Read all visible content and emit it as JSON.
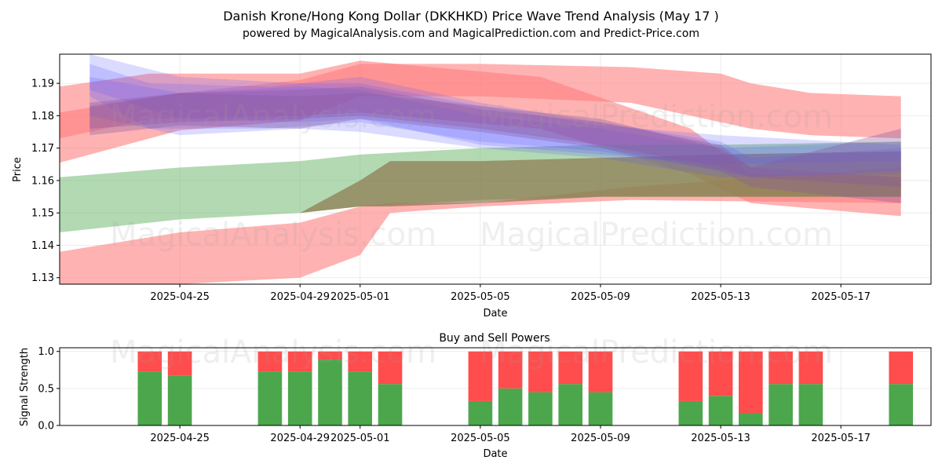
{
  "title": "Danish Krone/Hong Kong Dollar (DKKHKD) Price Wave Trend Analysis (May 17 )",
  "subtitle": "powered by MagicalAnalysis.com and MagicalPrediction.com and Predict-Price.com",
  "watermarks": [
    "MagicalAnalysis.com",
    "MagicalPrediction.com"
  ],
  "colors": {
    "blue_band": "#5a5aff",
    "red_band": "#ff7f7f",
    "green_band": "#7fc07f",
    "olive_band": "#8b6f45",
    "buy": "#4ca64c",
    "sell": "#ff4c4c"
  },
  "chart_data": [
    {
      "type": "area",
      "title": "",
      "xlabel": "Date",
      "ylabel": "Price",
      "x_range": [
        "2025-04-21",
        "2025-05-20"
      ],
      "ylim": [
        1.128,
        1.199
      ],
      "x_ticks": [
        "2025-04-25",
        "2025-04-29",
        "2025-05-01",
        "2025-05-05",
        "2025-05-09",
        "2025-05-13",
        "2025-05-17"
      ],
      "y_ticks": [
        1.13,
        1.14,
        1.15,
        1.16,
        1.17,
        1.18,
        1.19
      ],
      "grid": true,
      "bands": [
        {
          "group": "red",
          "points": [
            [
              "2025-04-21",
              1.173,
              1.189
            ],
            [
              "2025-04-24",
              1.179,
              1.193
            ],
            [
              "2025-04-29",
              1.18,
              1.193
            ],
            [
              "2025-05-01",
              1.181,
              1.197
            ],
            [
              "2025-05-07",
              1.176,
              1.192
            ],
            [
              "2025-05-12",
              1.162,
              1.176
            ],
            [
              "2025-05-14",
              1.153,
              1.162
            ],
            [
              "2025-05-19",
              1.149,
              1.161
            ]
          ]
        },
        {
          "group": "red",
          "points": [
            [
              "2025-04-21",
              1.127,
              1.138
            ],
            [
              "2025-04-25",
              1.128,
              1.144
            ],
            [
              "2025-04-29",
              1.13,
              1.147
            ],
            [
              "2025-05-01",
              1.137,
              1.152
            ],
            [
              "2025-05-02",
              1.15,
              1.153
            ],
            [
              "2025-05-05",
              1.152,
              1.153
            ],
            [
              "2025-05-10",
              1.154,
              1.158
            ],
            [
              "2025-05-19",
              1.153,
              1.164
            ]
          ]
        },
        {
          "group": "red",
          "points": [
            [
              "2025-04-21",
              1.1655,
              1.181
            ],
            [
              "2025-04-25",
              1.1755,
              1.187
            ],
            [
              "2025-04-29",
              1.1785,
              1.191
            ],
            [
              "2025-05-01",
              1.186,
              1.196
            ],
            [
              "2025-05-05",
              1.186,
              1.196
            ],
            [
              "2025-05-10",
              1.184,
              1.195
            ],
            [
              "2025-05-13",
              1.178,
              1.193
            ],
            [
              "2025-05-14",
              1.176,
              1.19
            ],
            [
              "2025-05-16",
              1.174,
              1.187
            ],
            [
              "2025-05-19",
              1.173,
              1.186
            ]
          ]
        },
        {
          "group": "green",
          "points": [
            [
              "2025-04-21",
              1.144,
              1.161
            ],
            [
              "2025-04-25",
              1.148,
              1.164
            ],
            [
              "2025-04-29",
              1.15,
              1.166
            ],
            [
              "2025-05-01",
              1.152,
              1.168
            ],
            [
              "2025-05-05",
              1.154,
              1.17
            ],
            [
              "2025-05-09",
              1.155,
              1.171
            ],
            [
              "2025-05-13",
              1.155,
              1.171
            ],
            [
              "2025-05-19",
              1.155,
              1.172
            ]
          ]
        },
        {
          "group": "olive",
          "points": [
            [
              "2025-04-29",
              1.15,
              1.15
            ],
            [
              "2025-05-01",
              1.152,
              1.16
            ],
            [
              "2025-05-02",
              1.152,
              1.166
            ],
            [
              "2025-05-05",
              1.153,
              1.166
            ],
            [
              "2025-05-09",
              1.155,
              1.167
            ],
            [
              "2025-05-13",
              1.155,
              1.168
            ],
            [
              "2025-05-19",
              1.155,
              1.169
            ]
          ]
        },
        {
          "group": "blue",
          "points": [
            [
              "2025-04-22",
              1.186,
              1.196
            ],
            [
              "2025-04-24",
              1.176,
              1.19
            ],
            [
              "2025-04-28",
              1.176,
              1.189
            ],
            [
              "2025-05-01",
              1.178,
              1.192
            ],
            [
              "2025-05-05",
              1.172,
              1.184
            ],
            [
              "2025-05-09",
              1.169,
              1.178
            ],
            [
              "2025-05-13",
              1.163,
              1.172
            ],
            [
              "2025-05-14",
              1.161,
              1.167
            ],
            [
              "2025-05-19",
              1.163,
              1.17
            ]
          ]
        },
        {
          "group": "blue",
          "points": [
            [
              "2025-04-22",
              1.18,
              1.192
            ],
            [
              "2025-04-25",
              1.174,
              1.187
            ],
            [
              "2025-04-29",
              1.176,
              1.189
            ],
            [
              "2025-05-01",
              1.175,
              1.188
            ],
            [
              "2025-05-05",
              1.17,
              1.18
            ],
            [
              "2025-05-09",
              1.167,
              1.176
            ],
            [
              "2025-05-13",
              1.161,
              1.17
            ],
            [
              "2025-05-19",
              1.162,
              1.172
            ]
          ]
        },
        {
          "group": "blue",
          "points": [
            [
              "2025-04-22",
              1.188,
              1.199
            ],
            [
              "2025-04-25",
              1.179,
              1.192
            ],
            [
              "2025-04-29",
              1.178,
              1.19
            ],
            [
              "2025-05-01",
              1.179,
              1.19
            ],
            [
              "2025-05-05",
              1.171,
              1.183
            ],
            [
              "2025-05-09",
              1.168,
              1.177
            ],
            [
              "2025-05-13",
              1.165,
              1.174
            ],
            [
              "2025-05-19",
              1.166,
              1.171
            ]
          ]
        },
        {
          "group": "purple",
          "points": [
            [
              "2025-04-22",
              1.174,
              1.183
            ],
            [
              "2025-04-25",
              1.177,
              1.187
            ],
            [
              "2025-04-29",
              1.176,
              1.186
            ],
            [
              "2025-05-01",
              1.179,
              1.187
            ],
            [
              "2025-05-05",
              1.175,
              1.183
            ],
            [
              "2025-05-09",
              1.17,
              1.179
            ],
            [
              "2025-05-13",
              1.163,
              1.17
            ],
            [
              "2025-05-14",
              1.158,
              1.164
            ],
            [
              "2025-05-19",
              1.153,
              1.161
            ]
          ]
        },
        {
          "group": "purple",
          "points": [
            [
              "2025-04-22",
              1.176,
              1.184
            ],
            [
              "2025-04-25",
              1.178,
              1.187
            ],
            [
              "2025-04-29",
              1.179,
              1.188
            ],
            [
              "2025-05-01",
              1.18,
              1.189
            ],
            [
              "2025-05-05",
              1.176,
              1.182
            ],
            [
              "2025-05-09",
              1.171,
              1.178
            ],
            [
              "2025-05-13",
              1.164,
              1.171
            ],
            [
              "2025-05-14",
              1.161,
              1.164
            ],
            [
              "2025-05-19",
              1.158,
              1.176
            ]
          ]
        }
      ]
    },
    {
      "type": "bar",
      "title": "Buy and Sell Powers",
      "xlabel": "Date",
      "ylabel": "Signal Strength",
      "x_range": [
        "2025-04-21",
        "2025-05-20"
      ],
      "ylim": [
        0,
        1.05
      ],
      "x_ticks": [
        "2025-04-25",
        "2025-04-29",
        "2025-05-01",
        "2025-05-05",
        "2025-05-09",
        "2025-05-13",
        "2025-05-17"
      ],
      "y_ticks": [
        0.0,
        0.5,
        1.0
      ],
      "y_tick_labels": [
        "0.0",
        "0.5",
        "1.0"
      ],
      "grid": true,
      "categories": [
        "2025-04-24",
        "2025-04-25",
        "2025-04-28",
        "2025-04-29",
        "2025-04-30",
        "2025-05-01",
        "2025-05-02",
        "2025-05-05",
        "2025-05-06",
        "2025-05-07",
        "2025-05-08",
        "2025-05-09",
        "2025-05-12",
        "2025-05-13",
        "2025-05-14",
        "2025-05-15",
        "2025-05-16",
        "2025-05-19"
      ],
      "series": [
        {
          "name": "",
          "color": "#4ca64c",
          "values": [
            0.73,
            0.67,
            0.73,
            0.73,
            0.89,
            0.73,
            0.56,
            0.33,
            0.5,
            0.45,
            0.56,
            0.45,
            0.33,
            0.4,
            0.17,
            0.56,
            0.56,
            0.56
          ]
        },
        {
          "name": "",
          "color": "#ff4c4c",
          "values": [
            0.27,
            0.33,
            0.27,
            0.27,
            0.11,
            0.27,
            0.44,
            0.67,
            0.5,
            0.55,
            0.44,
            0.55,
            0.67,
            0.6,
            0.83,
            0.44,
            0.44,
            0.44
          ]
        }
      ]
    }
  ]
}
